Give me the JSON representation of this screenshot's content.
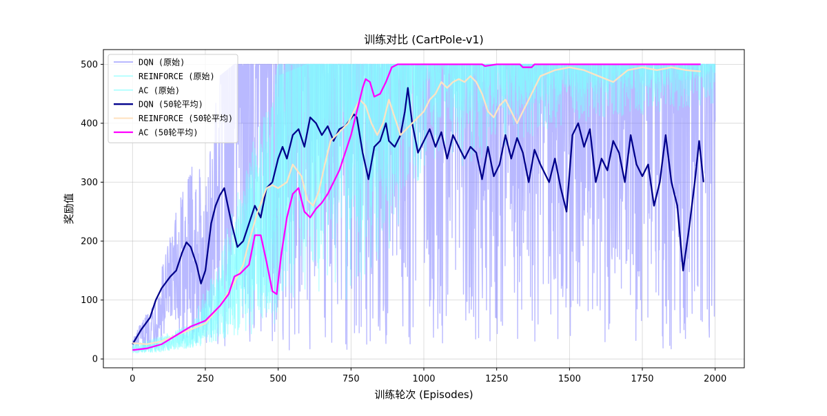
{
  "chart_data": {
    "type": "line",
    "title": "训练对比 (CartPole-v1)",
    "xlabel": "训练轮次 (Episodes)",
    "ylabel": "奖励值",
    "xlim": [
      -100,
      2100
    ],
    "ylim": [
      -15,
      525
    ],
    "x_ticks": [
      0,
      250,
      500,
      750,
      1000,
      1250,
      1500,
      1750,
      2000
    ],
    "y_ticks": [
      0,
      100,
      200,
      300,
      400,
      500
    ],
    "grid": true,
    "legend_position": "top-left",
    "raw_episodes": 2000,
    "series": [
      {
        "name": "DQN (原始)",
        "kind": "raw",
        "color": "#8080ff",
        "opacity": 0.55,
        "envelope": [
          [
            0,
            15,
            35
          ],
          [
            50,
            15,
            80
          ],
          [
            100,
            20,
            160
          ],
          [
            150,
            25,
            250
          ],
          [
            200,
            30,
            330
          ],
          [
            250,
            25,
            320
          ],
          [
            300,
            20,
            480
          ],
          [
            350,
            15,
            500
          ],
          [
            400,
            15,
            500
          ],
          [
            500,
            15,
            500
          ],
          [
            750,
            15,
            500
          ],
          [
            1000,
            15,
            500
          ],
          [
            1500,
            15,
            500
          ],
          [
            1900,
            15,
            500
          ],
          [
            1950,
            30,
            500
          ],
          [
            2000,
            10,
            500
          ]
        ]
      },
      {
        "name": "REINFORCE (原始)",
        "kind": "raw",
        "color": "#80ffff",
        "opacity": 0.55,
        "envelope": [
          [
            0,
            10,
            25
          ],
          [
            100,
            12,
            40
          ],
          [
            200,
            18,
            60
          ],
          [
            300,
            30,
            180
          ],
          [
            400,
            60,
            350
          ],
          [
            500,
            80,
            480
          ],
          [
            600,
            150,
            500
          ],
          [
            750,
            200,
            500
          ],
          [
            1000,
            300,
            500
          ],
          [
            1500,
            400,
            500
          ],
          [
            2000,
            430,
            500
          ]
        ]
      },
      {
        "name": "AC (原始)",
        "kind": "raw",
        "color": "#80ffff",
        "opacity": 0.55,
        "envelope": [
          [
            0,
            10,
            20
          ],
          [
            100,
            12,
            35
          ],
          [
            200,
            20,
            60
          ],
          [
            300,
            30,
            150
          ],
          [
            400,
            40,
            300
          ],
          [
            500,
            60,
            500
          ],
          [
            600,
            80,
            500
          ],
          [
            750,
            100,
            500
          ],
          [
            900,
            200,
            500
          ],
          [
            1000,
            400,
            500
          ],
          [
            2000,
            480,
            500
          ]
        ]
      },
      {
        "name": "DQN (50轮平均)",
        "kind": "avg",
        "color": "#00008b",
        "width": 2.3,
        "points": [
          [
            0,
            25
          ],
          [
            30,
            50
          ],
          [
            60,
            70
          ],
          [
            80,
            100
          ],
          [
            100,
            120
          ],
          [
            130,
            140
          ],
          [
            150,
            150
          ],
          [
            170,
            180
          ],
          [
            185,
            198
          ],
          [
            200,
            190
          ],
          [
            220,
            160
          ],
          [
            235,
            128
          ],
          [
            250,
            150
          ],
          [
            270,
            230
          ],
          [
            285,
            260
          ],
          [
            300,
            278
          ],
          [
            315,
            290
          ],
          [
            325,
            265
          ],
          [
            340,
            230
          ],
          [
            360,
            190
          ],
          [
            380,
            200
          ],
          [
            400,
            230
          ],
          [
            420,
            260
          ],
          [
            440,
            240
          ],
          [
            460,
            290
          ],
          [
            480,
            300
          ],
          [
            490,
            320
          ],
          [
            500,
            340
          ],
          [
            515,
            360
          ],
          [
            530,
            340
          ],
          [
            550,
            380
          ],
          [
            570,
            390
          ],
          [
            590,
            360
          ],
          [
            610,
            410
          ],
          [
            630,
            400
          ],
          [
            650,
            380
          ],
          [
            670,
            395
          ],
          [
            690,
            370
          ],
          [
            710,
            390
          ],
          [
            730,
            395
          ],
          [
            760,
            415
          ],
          [
            770,
            410
          ],
          [
            790,
            350
          ],
          [
            810,
            305
          ],
          [
            830,
            360
          ],
          [
            850,
            370
          ],
          [
            870,
            400
          ],
          [
            880,
            370
          ],
          [
            900,
            360
          ],
          [
            920,
            380
          ],
          [
            935,
            420
          ],
          [
            945,
            460
          ],
          [
            960,
            400
          ],
          [
            980,
            350
          ],
          [
            1000,
            370
          ],
          [
            1020,
            390
          ],
          [
            1040,
            360
          ],
          [
            1060,
            385
          ],
          [
            1080,
            340
          ],
          [
            1100,
            380
          ],
          [
            1120,
            360
          ],
          [
            1140,
            340
          ],
          [
            1160,
            360
          ],
          [
            1180,
            350
          ],
          [
            1200,
            305
          ],
          [
            1220,
            360
          ],
          [
            1240,
            310
          ],
          [
            1260,
            330
          ],
          [
            1280,
            380
          ],
          [
            1300,
            340
          ],
          [
            1320,
            375
          ],
          [
            1340,
            350
          ],
          [
            1360,
            300
          ],
          [
            1380,
            355
          ],
          [
            1400,
            330
          ],
          [
            1430,
            300
          ],
          [
            1450,
            340
          ],
          [
            1470,
            290
          ],
          [
            1490,
            250
          ],
          [
            1510,
            380
          ],
          [
            1530,
            400
          ],
          [
            1550,
            360
          ],
          [
            1570,
            390
          ],
          [
            1590,
            300
          ],
          [
            1610,
            340
          ],
          [
            1630,
            320
          ],
          [
            1650,
            370
          ],
          [
            1670,
            350
          ],
          [
            1690,
            300
          ],
          [
            1710,
            380
          ],
          [
            1730,
            330
          ],
          [
            1750,
            310
          ],
          [
            1770,
            330
          ],
          [
            1790,
            260
          ],
          [
            1810,
            300
          ],
          [
            1830,
            380
          ],
          [
            1850,
            300
          ],
          [
            1870,
            260
          ],
          [
            1890,
            150
          ],
          [
            1910,
            220
          ],
          [
            1930,
            300
          ],
          [
            1945,
            370
          ],
          [
            1960,
            300
          ]
        ]
      },
      {
        "name": "REINFORCE (50轮平均)",
        "kind": "avg",
        "color": "#ffe4c4",
        "width": 2.3,
        "points": [
          [
            0,
            27
          ],
          [
            50,
            25
          ],
          [
            100,
            30
          ],
          [
            150,
            40
          ],
          [
            200,
            50
          ],
          [
            250,
            60
          ],
          [
            300,
            90
          ],
          [
            350,
            130
          ],
          [
            380,
            160
          ],
          [
            400,
            200
          ],
          [
            430,
            250
          ],
          [
            460,
            290
          ],
          [
            480,
            295
          ],
          [
            500,
            290
          ],
          [
            530,
            300
          ],
          [
            550,
            330
          ],
          [
            580,
            310
          ],
          [
            600,
            270
          ],
          [
            620,
            260
          ],
          [
            640,
            285
          ],
          [
            660,
            330
          ],
          [
            680,
            370
          ],
          [
            700,
            380
          ],
          [
            720,
            390
          ],
          [
            740,
            400
          ],
          [
            760,
            420
          ],
          [
            780,
            440
          ],
          [
            800,
            430
          ],
          [
            820,
            400
          ],
          [
            840,
            380
          ],
          [
            860,
            400
          ],
          [
            880,
            440
          ],
          [
            900,
            410
          ],
          [
            920,
            380
          ],
          [
            940,
            390
          ],
          [
            960,
            400
          ],
          [
            980,
            410
          ],
          [
            1000,
            420
          ],
          [
            1020,
            440
          ],
          [
            1040,
            450
          ],
          [
            1060,
            470
          ],
          [
            1080,
            460
          ],
          [
            1100,
            470
          ],
          [
            1120,
            475
          ],
          [
            1140,
            470
          ],
          [
            1160,
            480
          ],
          [
            1180,
            470
          ],
          [
            1200,
            450
          ],
          [
            1220,
            420
          ],
          [
            1240,
            410
          ],
          [
            1260,
            430
          ],
          [
            1280,
            440
          ],
          [
            1300,
            420
          ],
          [
            1320,
            400
          ],
          [
            1340,
            420
          ],
          [
            1360,
            440
          ],
          [
            1380,
            460
          ],
          [
            1400,
            480
          ],
          [
            1450,
            490
          ],
          [
            1500,
            495
          ],
          [
            1550,
            490
          ],
          [
            1600,
            480
          ],
          [
            1650,
            470
          ],
          [
            1700,
            490
          ],
          [
            1750,
            495
          ],
          [
            1800,
            490
          ],
          [
            1850,
            495
          ],
          [
            1900,
            490
          ],
          [
            1950,
            488
          ]
        ]
      },
      {
        "name": "AC (50轮平均)",
        "kind": "avg",
        "color": "#ff00ff",
        "width": 2.3,
        "points": [
          [
            0,
            15
          ],
          [
            50,
            18
          ],
          [
            100,
            25
          ],
          [
            150,
            40
          ],
          [
            200,
            55
          ],
          [
            250,
            65
          ],
          [
            300,
            90
          ],
          [
            330,
            110
          ],
          [
            350,
            140
          ],
          [
            370,
            145
          ],
          [
            390,
            155
          ],
          [
            400,
            160
          ],
          [
            420,
            210
          ],
          [
            440,
            210
          ],
          [
            460,
            165
          ],
          [
            480,
            115
          ],
          [
            495,
            110
          ],
          [
            510,
            175
          ],
          [
            530,
            240
          ],
          [
            550,
            280
          ],
          [
            570,
            290
          ],
          [
            590,
            250
          ],
          [
            610,
            240
          ],
          [
            630,
            255
          ],
          [
            650,
            265
          ],
          [
            670,
            280
          ],
          [
            690,
            300
          ],
          [
            710,
            320
          ],
          [
            730,
            350
          ],
          [
            750,
            380
          ],
          [
            770,
            420
          ],
          [
            790,
            460
          ],
          [
            800,
            475
          ],
          [
            815,
            470
          ],
          [
            830,
            445
          ],
          [
            850,
            450
          ],
          [
            870,
            470
          ],
          [
            890,
            495
          ],
          [
            910,
            500
          ],
          [
            1000,
            500
          ],
          [
            1200,
            500
          ],
          [
            1210,
            497
          ],
          [
            1250,
            500
          ],
          [
            1330,
            500
          ],
          [
            1340,
            495
          ],
          [
            1370,
            495
          ],
          [
            1380,
            500
          ],
          [
            1950,
            500
          ]
        ]
      }
    ]
  }
}
